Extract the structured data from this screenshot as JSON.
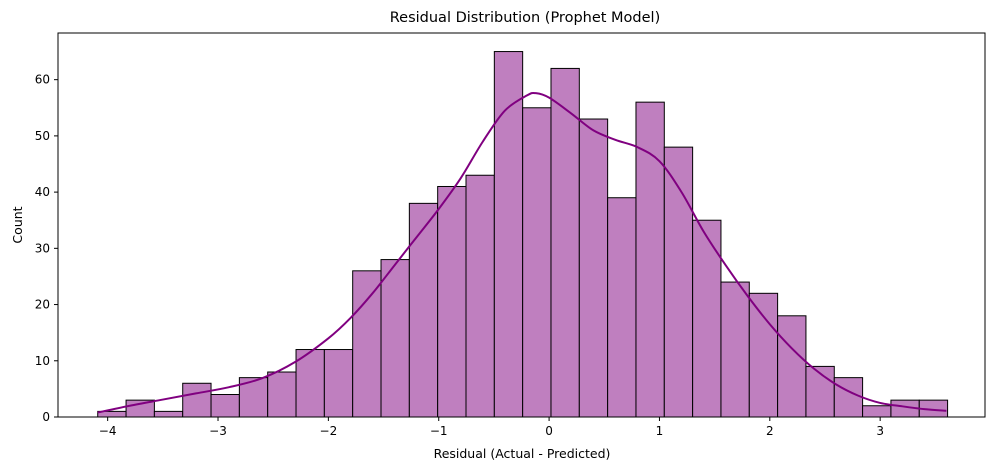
{
  "chart_data": {
    "type": "bar",
    "title": "Residual Distribution (Prophet Model)",
    "xlabel": "Residual (Actual - Predicted)",
    "ylabel": "Count",
    "xlim": [
      -4.45,
      3.95
    ],
    "ylim": [
      0,
      68.3
    ],
    "xticks": [
      -4,
      -3,
      -2,
      -1,
      0,
      1,
      2,
      3
    ],
    "xtick_labels": [
      "−4",
      "−3",
      "−2",
      "−1",
      "0",
      "1",
      "2",
      "3"
    ],
    "yticks": [
      0,
      10,
      20,
      30,
      40,
      50,
      60
    ],
    "yticks_labels": [
      "0",
      "10",
      "20",
      "30",
      "40",
      "50",
      "60"
    ],
    "bin_start": -4.09,
    "bin_width": 0.2567,
    "values": [
      1,
      3,
      1,
      6,
      4,
      7,
      8,
      12,
      12,
      26,
      28,
      38,
      41,
      43,
      65,
      55,
      62,
      53,
      39,
      56,
      48,
      35,
      24,
      22,
      18,
      9,
      7,
      2,
      3,
      3
    ],
    "kde": {
      "x": [
        -4.09,
        -3.8,
        -3.5,
        -3.2,
        -2.9,
        -2.6,
        -2.3,
        -2.0,
        -1.8,
        -1.6,
        -1.4,
        -1.2,
        -1.0,
        -0.8,
        -0.6,
        -0.4,
        -0.2,
        -0.12,
        0.0,
        0.2,
        0.4,
        0.6,
        0.8,
        1.0,
        1.2,
        1.4,
        1.6,
        1.8,
        2.0,
        2.2,
        2.4,
        2.6,
        2.8,
        3.0,
        3.2,
        3.4,
        3.6
      ],
      "y": [
        0.8,
        2.0,
        3.1,
        4.2,
        5.3,
        6.9,
        9.8,
        14.0,
        17.6,
        22.0,
        27.0,
        32.0,
        37.0,
        42.5,
        49.0,
        54.5,
        57.2,
        57.6,
        56.8,
        54.0,
        51.0,
        49.3,
        48.0,
        45.5,
        40.0,
        33.0,
        27.0,
        21.5,
        16.5,
        12.2,
        8.6,
        5.8,
        3.8,
        2.5,
        1.9,
        1.4,
        1.1
      ]
    },
    "bar_color": "#bf7fbf",
    "bar_edge_color": "#000000",
    "kde_color": "#800080",
    "grid": false,
    "legend": "none"
  }
}
